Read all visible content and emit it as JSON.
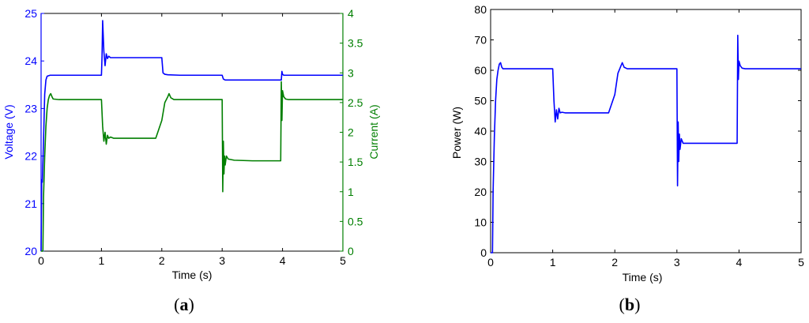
{
  "chart_data": [
    {
      "id": "a",
      "type": "line",
      "caption": "a",
      "xlabel": "Time (s)",
      "xlim": [
        0,
        5
      ],
      "xticks": [
        0,
        1,
        2,
        3,
        4,
        5
      ],
      "y_left": {
        "label": "Voltage (V)",
        "color": "#0000ff",
        "lim": [
          20,
          25
        ],
        "ticks": [
          20,
          21,
          22,
          23,
          24,
          25
        ]
      },
      "y_right": {
        "label": "Current (A)",
        "color": "#007f00",
        "lim": [
          0,
          4
        ],
        "ticks": [
          "0",
          "0.5",
          "1",
          "1.5",
          "2",
          "2.5",
          "3",
          "3.5",
          "4"
        ]
      },
      "series": [
        {
          "axis": "left",
          "color": "#0000ff",
          "x": [
            0,
            0.01,
            0.02,
            0.04,
            0.06,
            0.08,
            0.1,
            0.15,
            0.25,
            1.0,
            1.01,
            1.02,
            1.04,
            1.06,
            1.08,
            1.1,
            1.12,
            1.15,
            1.3,
            2.0,
            2.02,
            2.05,
            2.1,
            2.3,
            3.0,
            3.02,
            3.05,
            3.2,
            3.98,
            3.99,
            4.0,
            4.02,
            4.1,
            5.0
          ],
          "y": [
            20.0,
            21.5,
            21.45,
            22.3,
            23.3,
            23.6,
            23.68,
            23.7,
            23.7,
            23.7,
            24.1,
            24.85,
            24.2,
            23.9,
            24.15,
            24.05,
            24.1,
            24.07,
            24.07,
            24.07,
            23.75,
            23.72,
            23.71,
            23.7,
            23.7,
            23.62,
            23.6,
            23.6,
            23.6,
            23.78,
            23.72,
            23.7,
            23.7,
            23.7
          ]
        },
        {
          "axis": "right",
          "color": "#007f00",
          "x": [
            0,
            0.03,
            0.04,
            0.06,
            0.08,
            0.1,
            0.12,
            0.14,
            0.16,
            0.18,
            0.2,
            0.3,
            1.0,
            1.02,
            1.04,
            1.06,
            1.08,
            1.1,
            1.12,
            1.15,
            1.2,
            1.5,
            1.9,
            2.0,
            2.05,
            2.1,
            2.12,
            2.15,
            2.2,
            3.0,
            3.01,
            3.02,
            3.03,
            3.04,
            3.05,
            3.07,
            3.1,
            3.2,
            3.5,
            3.97,
            3.98,
            3.99,
            4.0,
            4.02,
            4.05,
            4.1,
            5.0
          ],
          "y": [
            0.0,
            0.0,
            0.9,
            1.6,
            2.1,
            2.4,
            2.55,
            2.62,
            2.65,
            2.6,
            2.56,
            2.55,
            2.55,
            2.1,
            1.85,
            2.0,
            1.8,
            1.95,
            1.9,
            1.92,
            1.9,
            1.9,
            1.9,
            2.2,
            2.5,
            2.6,
            2.65,
            2.58,
            2.55,
            2.55,
            1.0,
            1.85,
            1.3,
            1.6,
            1.45,
            1.6,
            1.55,
            1.53,
            1.52,
            1.52,
            2.85,
            2.2,
            2.7,
            2.6,
            2.56,
            2.55,
            2.55
          ]
        }
      ]
    },
    {
      "id": "b",
      "type": "line",
      "caption": "b",
      "xlabel": "Time (s)",
      "xlim": [
        0,
        5
      ],
      "xticks": [
        0,
        1,
        2,
        3,
        4,
        5
      ],
      "y_left": {
        "label": "Power (W)",
        "color": "#000000",
        "lim": [
          0,
          80
        ],
        "ticks": [
          0,
          10,
          20,
          30,
          40,
          50,
          60,
          70,
          80
        ]
      },
      "series": [
        {
          "axis": "left",
          "color": "#0000ff",
          "x": [
            0,
            0.03,
            0.04,
            0.06,
            0.08,
            0.1,
            0.12,
            0.14,
            0.16,
            0.18,
            0.2,
            0.3,
            1.0,
            1.02,
            1.04,
            1.06,
            1.08,
            1.1,
            1.12,
            1.15,
            1.2,
            1.5,
            1.9,
            2.0,
            2.05,
            2.1,
            2.12,
            2.15,
            2.2,
            3.0,
            3.01,
            3.02,
            3.03,
            3.04,
            3.05,
            3.07,
            3.1,
            3.2,
            3.97,
            3.98,
            3.99,
            4.0,
            4.02,
            4.05,
            4.1,
            5.0
          ],
          "y": [
            0.0,
            0.0,
            20.0,
            38.0,
            50.0,
            57.0,
            60.0,
            62.0,
            62.5,
            61.0,
            60.5,
            60.5,
            60.5,
            50.0,
            43.0,
            47.0,
            44.0,
            47.5,
            46.0,
            46.2,
            46.0,
            46.0,
            46.0,
            52.0,
            59.0,
            61.5,
            62.5,
            61.0,
            60.5,
            60.5,
            22.0,
            43.0,
            30.0,
            39.0,
            34.0,
            37.5,
            36.0,
            36.0,
            36.0,
            71.5,
            57.0,
            63.0,
            61.5,
            60.7,
            60.5,
            60.5
          ]
        }
      ]
    }
  ]
}
